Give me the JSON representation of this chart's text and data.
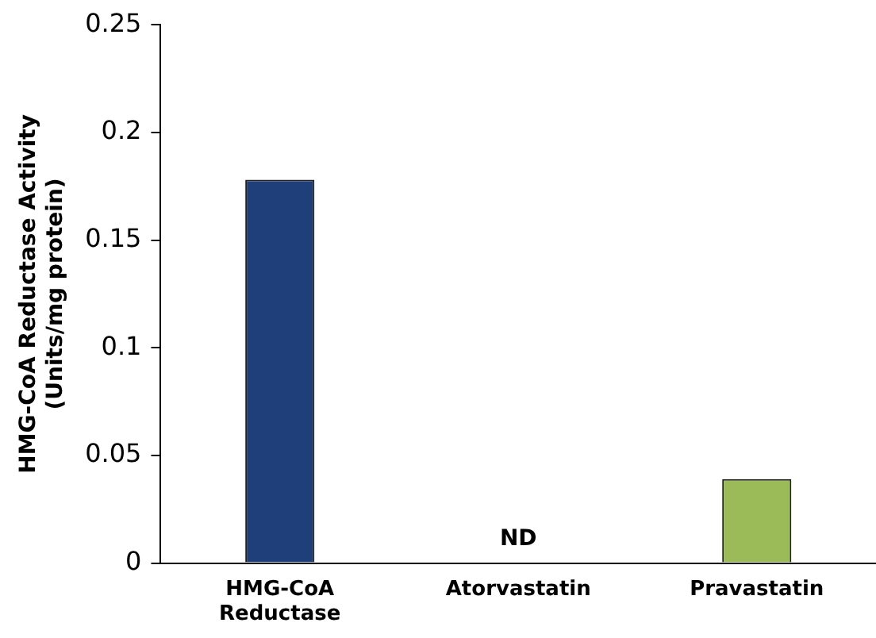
{
  "chart_data": {
    "type": "bar",
    "ylabel": "HMG-CoA Reductase Activity (Units/mg protein)",
    "categories": [
      "HMG-CoA Reductase",
      "Atorvastatin",
      "Pravastatin"
    ],
    "values": [
      0.178,
      null,
      0.039
    ],
    "colors": [
      "#1f3f7a",
      "#1f3f7a",
      "#9bbb59"
    ],
    "value_labels": [
      null,
      "ND",
      null
    ],
    "ylim": [
      0,
      0.25
    ],
    "yticks": [
      0,
      0.05,
      0.1,
      0.15,
      0.2,
      0.25
    ],
    "grid": false,
    "legend": false
  }
}
